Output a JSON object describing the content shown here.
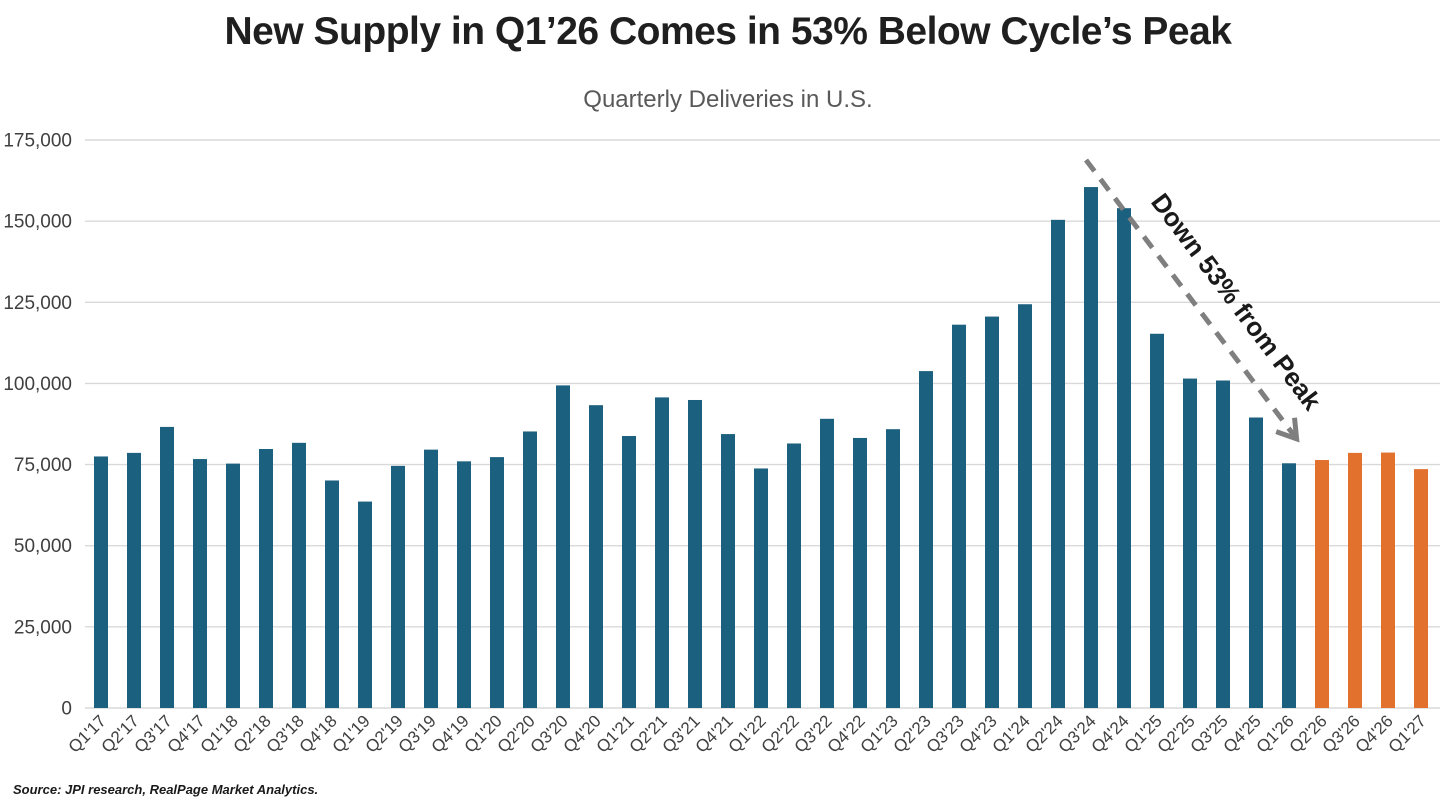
{
  "header": {
    "title": "New Supply in Q1’26 Comes in 53% Below Cycle’s Peak",
    "subtitle": "Quarterly Deliveries in U.S."
  },
  "footer": {
    "source": "Source: JPI research, RealPage Market Analytics."
  },
  "chart_data": {
    "type": "bar",
    "title": "New Supply in Q1’26 Comes in 53% Below Cycle’s Peak",
    "subtitle": "Quarterly Deliveries in U.S.",
    "xlabel": "",
    "ylabel": "",
    "categories": [
      "Q1'17",
      "Q2'17",
      "Q3'17",
      "Q4'17",
      "Q1'18",
      "Q2'18",
      "Q3'18",
      "Q4'18",
      "Q1'19",
      "Q2'19",
      "Q3'19",
      "Q4'19",
      "Q1'20",
      "Q2'20",
      "Q3'20",
      "Q4'20",
      "Q1'21",
      "Q2'21",
      "Q3'21",
      "Q4'21",
      "Q1'22",
      "Q2'22",
      "Q3'22",
      "Q4'22",
      "Q1'23",
      "Q2'23",
      "Q3'23",
      "Q4'23",
      "Q1'24",
      "Q2'24",
      "Q3'24",
      "Q4'24",
      "Q1'25",
      "Q2'25",
      "Q3'25",
      "Q4'25",
      "Q1'26",
      "Q2'26",
      "Q3'26",
      "Q4'26",
      "Q1'27"
    ],
    "values": [
      77500,
      78600,
      86600,
      76700,
      75300,
      79800,
      81700,
      70100,
      63600,
      74600,
      79600,
      76000,
      77300,
      85200,
      99400,
      93300,
      83800,
      95700,
      94900,
      84400,
      73800,
      81500,
      89100,
      83200,
      85900,
      103800,
      118100,
      120600,
      124400,
      150400,
      160500,
      154000,
      115300,
      101500,
      100900,
      89500,
      75400,
      76400,
      78600,
      78700,
      73600
    ],
    "ylim": [
      0,
      175000
    ],
    "y_ticks": [
      0,
      25000,
      50000,
      75000,
      100000,
      125000,
      150000,
      175000
    ],
    "y_tick_labels": [
      "0",
      "25,000",
      "50,000",
      "75,000",
      "100,000",
      "125,000",
      "150,000",
      "175,000"
    ],
    "grid": "horizontal",
    "legend": "none",
    "bar_color": "#1C607F",
    "highlight_color": "#E2712E",
    "highlight_categories": [
      "Q2'26",
      "Q3'26",
      "Q4'26",
      "Q1'27"
    ],
    "annotation": {
      "text": "Down 53% from Peak",
      "arrow_color": "#7f7f7f"
    }
  }
}
